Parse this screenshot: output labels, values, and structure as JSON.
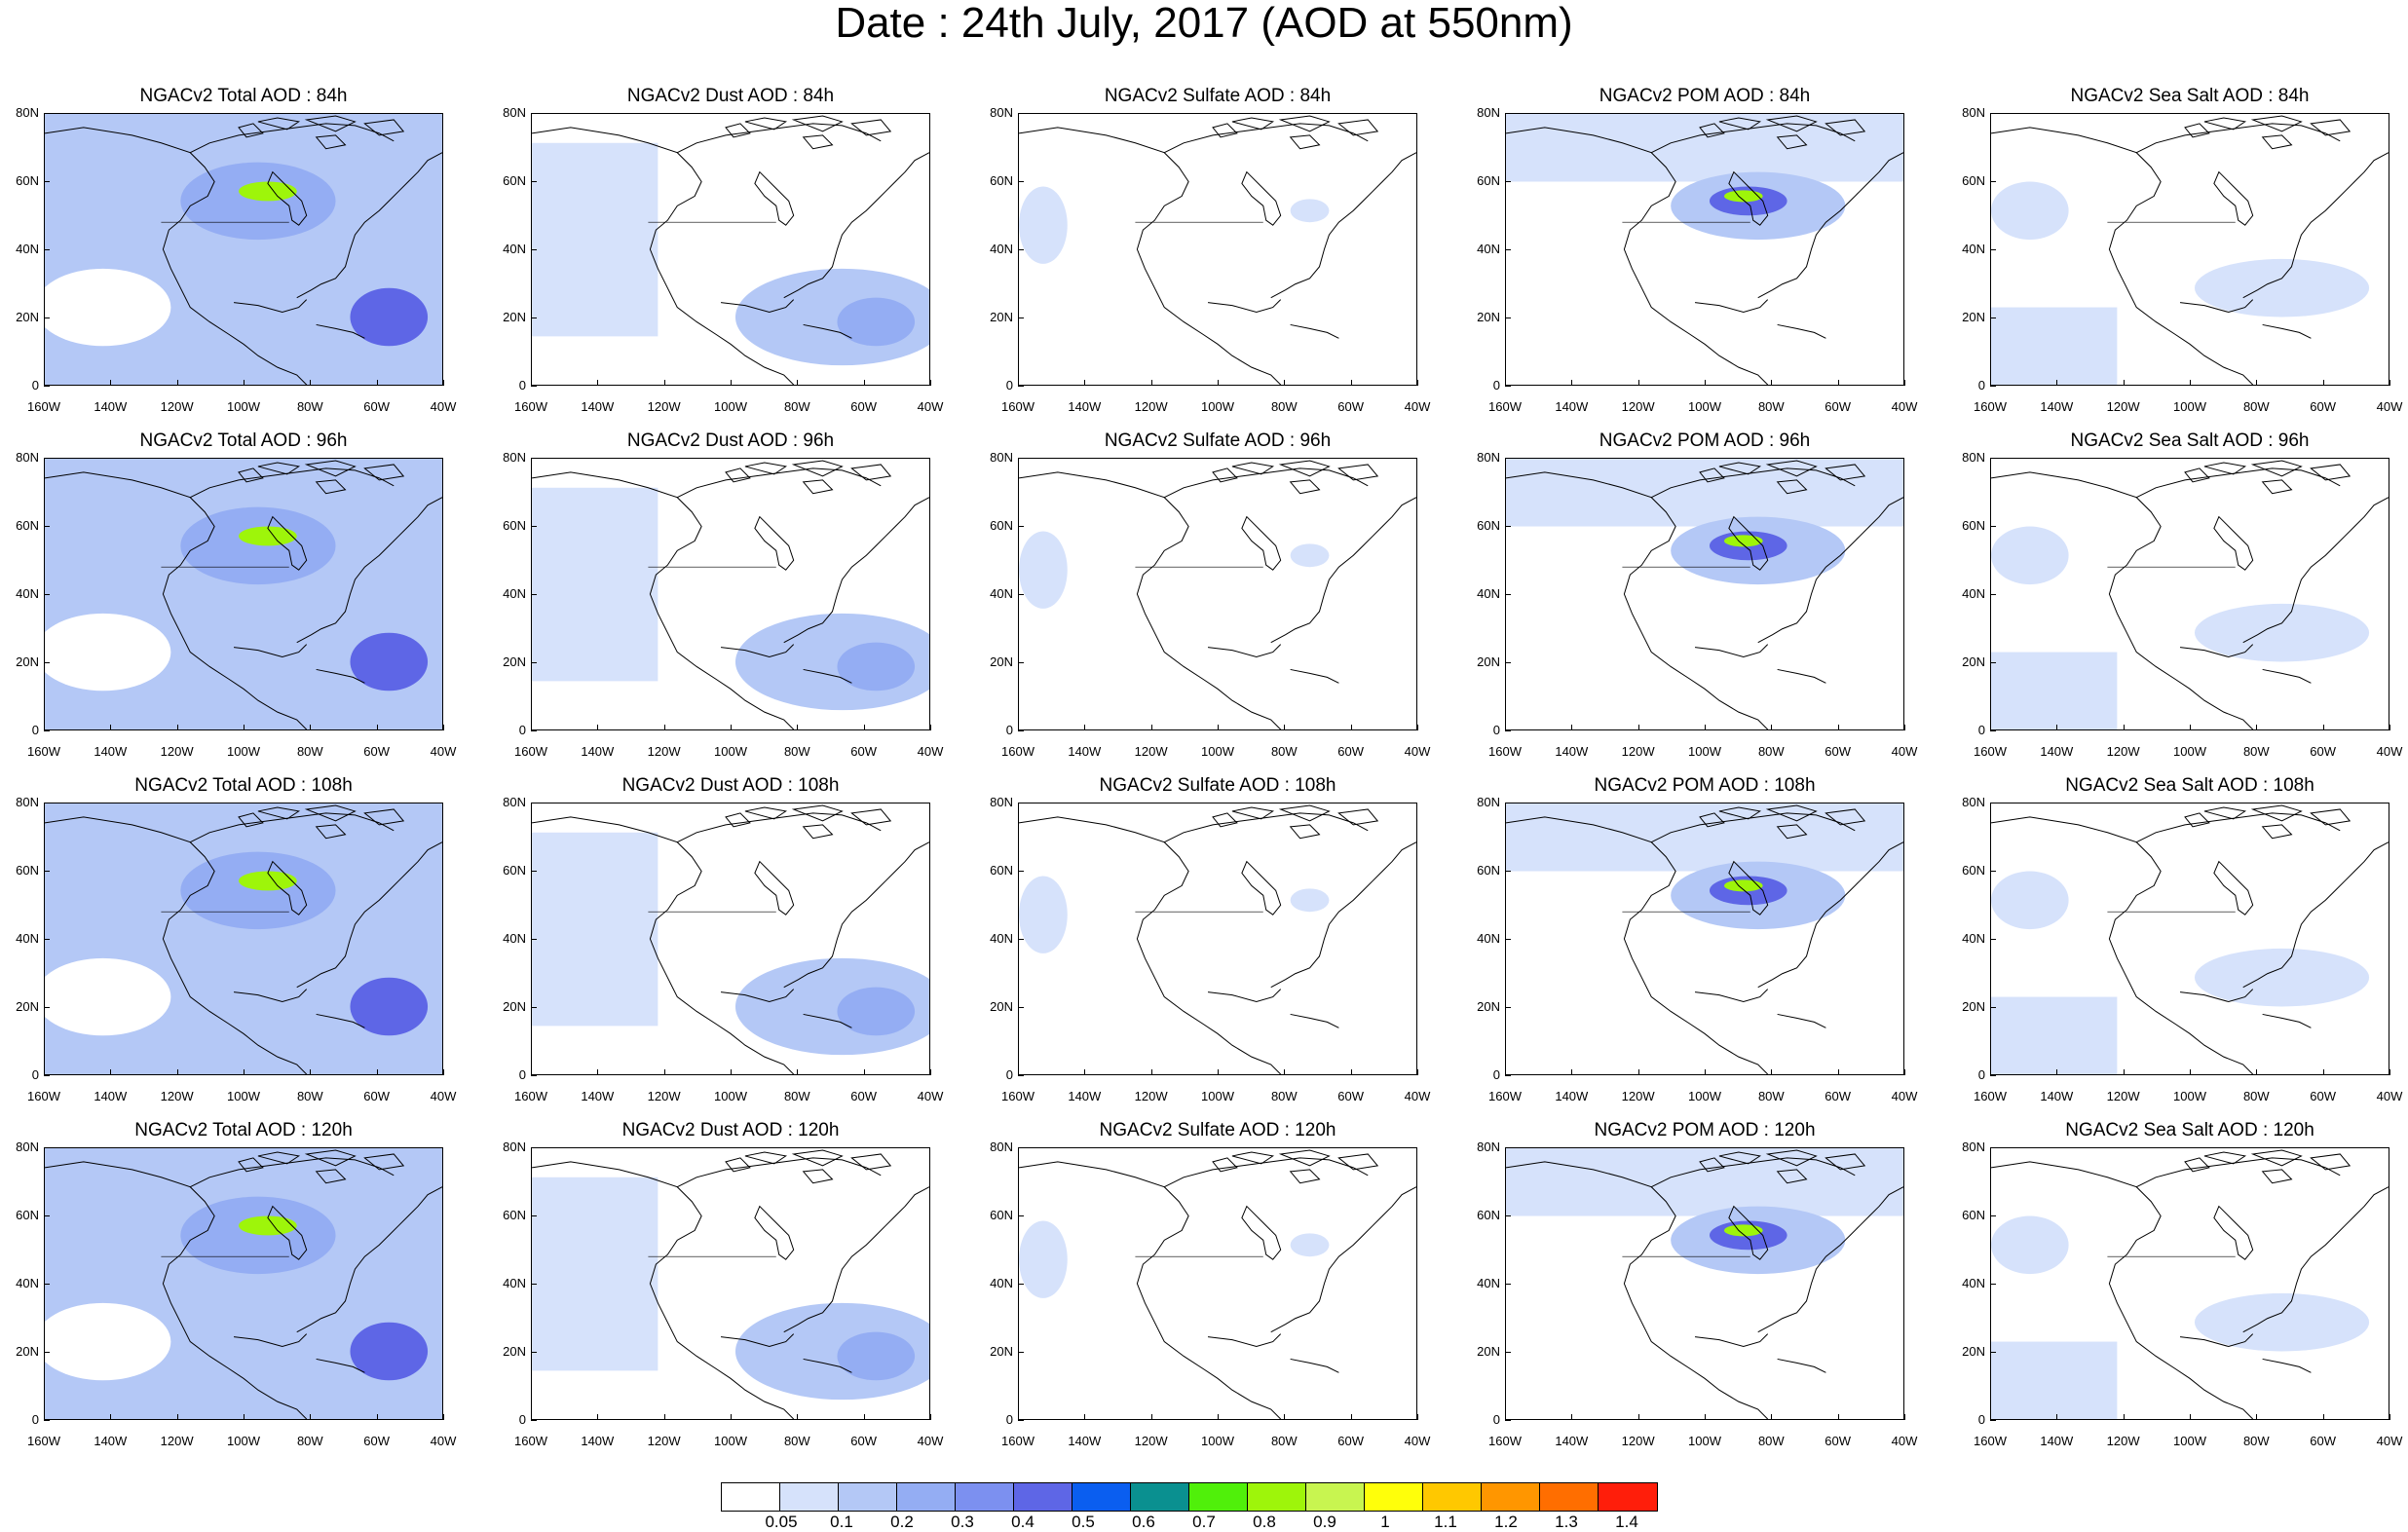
{
  "title": "Date : 24th July, 2017 (AOD at 550nm)",
  "panels": [
    {
      "title": "NGACv2 Total AOD : 84h",
      "species": "total",
      "hour": 84
    },
    {
      "title": "NGACv2 Dust AOD : 84h",
      "species": "dust",
      "hour": 84
    },
    {
      "title": "NGACv2 Sulfate AOD : 84h",
      "species": "sulfate",
      "hour": 84
    },
    {
      "title": "NGACv2 POM AOD : 84h",
      "species": "pom",
      "hour": 84
    },
    {
      "title": "NGACv2 Sea Salt AOD : 84h",
      "species": "seasalt",
      "hour": 84
    },
    {
      "title": "NGACv2 Total AOD : 96h",
      "species": "total",
      "hour": 96
    },
    {
      "title": "NGACv2 Dust AOD : 96h",
      "species": "dust",
      "hour": 96
    },
    {
      "title": "NGACv2 Sulfate AOD : 96h",
      "species": "sulfate",
      "hour": 96
    },
    {
      "title": "NGACv2 POM AOD : 96h",
      "species": "pom",
      "hour": 96
    },
    {
      "title": "NGACv2 Sea Salt AOD : 96h",
      "species": "seasalt",
      "hour": 96
    },
    {
      "title": "NGACv2 Total AOD : 108h",
      "species": "total",
      "hour": 108
    },
    {
      "title": "NGACv2 Dust AOD : 108h",
      "species": "dust",
      "hour": 108
    },
    {
      "title": "NGACv2 Sulfate AOD : 108h",
      "species": "sulfate",
      "hour": 108
    },
    {
      "title": "NGACv2 POM AOD : 108h",
      "species": "pom",
      "hour": 108
    },
    {
      "title": "NGACv2 Sea Salt AOD : 108h",
      "species": "seasalt",
      "hour": 108
    },
    {
      "title": "NGACv2 Total AOD : 120h",
      "species": "total",
      "hour": 120
    },
    {
      "title": "NGACv2 Dust AOD : 120h",
      "species": "dust",
      "hour": 120
    },
    {
      "title": "NGACv2 Sulfate AOD : 120h",
      "species": "sulfate",
      "hour": 120
    },
    {
      "title": "NGACv2 POM AOD : 120h",
      "species": "pom",
      "hour": 120
    },
    {
      "title": "NGACv2 Sea Salt  AOD : 120h",
      "species": "seasalt",
      "hour": 120
    }
  ],
  "axes": {
    "lat_labels": [
      "80N",
      "60N",
      "40N",
      "20N",
      "0"
    ],
    "lon_labels": [
      "160W",
      "140W",
      "120W",
      "100W",
      "80W",
      "60W",
      "40W"
    ]
  },
  "colorbar": {
    "colors": [
      "#ffffff",
      "#d6e2fb",
      "#b4c8f6",
      "#94adf3",
      "#7c90f0",
      "#5e66e6",
      "#0a5ef0",
      "#0a9090",
      "#50f00a",
      "#9ef50a",
      "#c8f550",
      "#ffff0a",
      "#ffc800",
      "#ff9600",
      "#ff6e00",
      "#ff1e0a"
    ],
    "labels": [
      "0.05",
      "0.1",
      "0.2",
      "0.3",
      "0.4",
      "0.5",
      "0.6",
      "0.7",
      "0.8",
      "0.9",
      "1",
      "1.1",
      "1.2",
      "1.3",
      "1.4"
    ]
  },
  "map_colors": {
    "land_line": "#000000",
    "light": "#d6e2fb",
    "mid": "#b4c8f6",
    "strong": "#94adf3",
    "plume": "#5e66e6",
    "hot": "#9ef50a"
  }
}
